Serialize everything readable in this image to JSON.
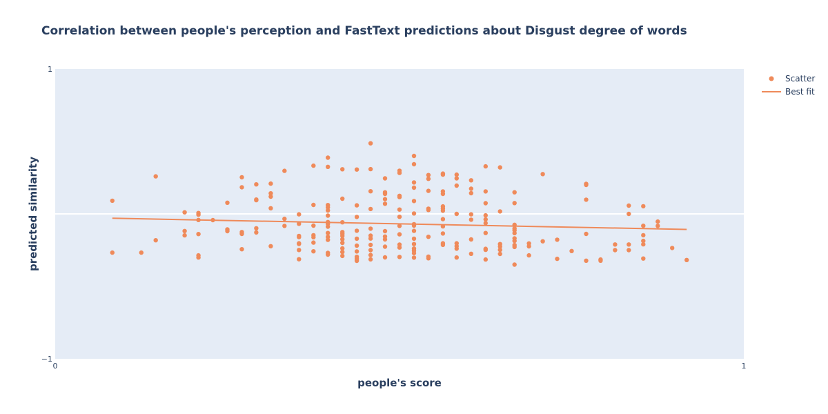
{
  "chart_data": {
    "type": "scatter",
    "title": "Correlation between people's perception and FastText predictions about Disgust degree of words",
    "xlabel": "people's score",
    "ylabel": "predicted similarity",
    "xlim": [
      0,
      1
    ],
    "ylim": [
      -1,
      1
    ],
    "x_ticks": [
      "0",
      "1"
    ],
    "y_ticks": [
      "−1",
      "1"
    ],
    "grid": true,
    "legend_position": "top-right",
    "colors": {
      "plot_bg": "#e5ecf6",
      "marker": "#ef8a5a",
      "line": "#ef8a5a",
      "zero_line": "#ffffff"
    },
    "series": [
      {
        "name": "Scatter",
        "mode": "markers",
        "points": [
          [
            0.083,
            0.091
          ],
          [
            0.083,
            -0.267
          ],
          [
            0.125,
            -0.267
          ],
          [
            0.146,
            0.259
          ],
          [
            0.146,
            -0.182
          ],
          [
            0.188,
            0.011
          ],
          [
            0.188,
            -0.118
          ],
          [
            0.188,
            -0.148
          ],
          [
            0.208,
            0.006
          ],
          [
            0.208,
            -0.005
          ],
          [
            0.208,
            -0.042
          ],
          [
            0.208,
            -0.139
          ],
          [
            0.208,
            -0.286
          ],
          [
            0.208,
            -0.301
          ],
          [
            0.229,
            -0.043
          ],
          [
            0.25,
            0.077
          ],
          [
            0.25,
            -0.107
          ],
          [
            0.25,
            -0.119
          ],
          [
            0.271,
            0.253
          ],
          [
            0.271,
            0.184
          ],
          [
            0.271,
            -0.125
          ],
          [
            0.271,
            -0.138
          ],
          [
            0.271,
            -0.244
          ],
          [
            0.292,
            0.204
          ],
          [
            0.292,
            0.099
          ],
          [
            0.292,
            0.095
          ],
          [
            0.292,
            -0.099
          ],
          [
            0.292,
            -0.128
          ],
          [
            0.313,
            0.209
          ],
          [
            0.313,
            0.142
          ],
          [
            0.313,
            0.119
          ],
          [
            0.313,
            0.039
          ],
          [
            0.313,
            -0.223
          ],
          [
            0.333,
            0.297
          ],
          [
            0.333,
            -0.034
          ],
          [
            0.333,
            -0.083
          ],
          [
            0.354,
            -0.003
          ],
          [
            0.354,
            -0.068
          ],
          [
            0.354,
            -0.152
          ],
          [
            0.354,
            -0.16
          ],
          [
            0.354,
            -0.203
          ],
          [
            0.354,
            -0.207
          ],
          [
            0.354,
            -0.249
          ],
          [
            0.354,
            -0.313
          ],
          [
            0.375,
            0.333
          ],
          [
            0.375,
            0.062
          ],
          [
            0.375,
            -0.081
          ],
          [
            0.375,
            -0.147
          ],
          [
            0.375,
            -0.161
          ],
          [
            0.375,
            -0.198
          ],
          [
            0.375,
            -0.258
          ],
          [
            0.396,
            0.388
          ],
          [
            0.396,
            0.325
          ],
          [
            0.396,
            0.061
          ],
          [
            0.396,
            0.045
          ],
          [
            0.396,
            0.024
          ],
          [
            0.396,
            -0.012
          ],
          [
            0.396,
            -0.056
          ],
          [
            0.396,
            -0.069
          ],
          [
            0.396,
            -0.088
          ],
          [
            0.396,
            -0.132
          ],
          [
            0.396,
            -0.159
          ],
          [
            0.396,
            -0.179
          ],
          [
            0.396,
            -0.269
          ],
          [
            0.396,
            -0.281
          ],
          [
            0.417,
            0.308
          ],
          [
            0.417,
            0.105
          ],
          [
            0.417,
            -0.058
          ],
          [
            0.417,
            -0.125
          ],
          [
            0.417,
            -0.138
          ],
          [
            0.417,
            -0.152
          ],
          [
            0.417,
            -0.175
          ],
          [
            0.417,
            -0.2
          ],
          [
            0.417,
            -0.238
          ],
          [
            0.417,
            -0.263
          ],
          [
            0.417,
            -0.29
          ],
          [
            0.438,
            0.306
          ],
          [
            0.438,
            0.059
          ],
          [
            0.438,
            -0.021
          ],
          [
            0.438,
            -0.116
          ],
          [
            0.438,
            -0.171
          ],
          [
            0.438,
            -0.219
          ],
          [
            0.438,
            -0.259
          ],
          [
            0.438,
            -0.296
          ],
          [
            0.438,
            -0.31
          ],
          [
            0.438,
            -0.324
          ],
          [
            0.458,
            0.487
          ],
          [
            0.458,
            0.309
          ],
          [
            0.458,
            0.156
          ],
          [
            0.458,
            0.034
          ],
          [
            0.458,
            -0.102
          ],
          [
            0.458,
            -0.15
          ],
          [
            0.458,
            -0.17
          ],
          [
            0.458,
            -0.214
          ],
          [
            0.458,
            -0.25
          ],
          [
            0.458,
            -0.284
          ],
          [
            0.458,
            -0.314
          ],
          [
            0.479,
            0.245
          ],
          [
            0.479,
            0.149
          ],
          [
            0.479,
            0.138
          ],
          [
            0.479,
            0.102
          ],
          [
            0.479,
            0.07
          ],
          [
            0.479,
            -0.119
          ],
          [
            0.479,
            -0.156
          ],
          [
            0.479,
            -0.176
          ],
          [
            0.479,
            -0.226
          ],
          [
            0.479,
            -0.3
          ],
          [
            0.5,
            0.298
          ],
          [
            0.5,
            0.283
          ],
          [
            0.5,
            0.125
          ],
          [
            0.5,
            0.116
          ],
          [
            0.5,
            0.03
          ],
          [
            0.5,
            -0.02
          ],
          [
            0.5,
            -0.083
          ],
          [
            0.5,
            -0.141
          ],
          [
            0.5,
            -0.212
          ],
          [
            0.5,
            -0.232
          ],
          [
            0.5,
            -0.297
          ],
          [
            0.521,
            0.4
          ],
          [
            0.521,
            0.343
          ],
          [
            0.521,
            0.217
          ],
          [
            0.521,
            0.181
          ],
          [
            0.521,
            0.089
          ],
          [
            0.521,
            0.003
          ],
          [
            0.521,
            -0.071
          ],
          [
            0.521,
            -0.081
          ],
          [
            0.521,
            -0.117
          ],
          [
            0.521,
            -0.171
          ],
          [
            0.521,
            -0.208
          ],
          [
            0.521,
            -0.239
          ],
          [
            0.521,
            -0.254
          ],
          [
            0.521,
            -0.271
          ],
          [
            0.521,
            -0.302
          ],
          [
            0.542,
            0.268
          ],
          [
            0.542,
            0.242
          ],
          [
            0.542,
            0.159
          ],
          [
            0.542,
            0.036
          ],
          [
            0.542,
            0.027
          ],
          [
            0.542,
            -0.158
          ],
          [
            0.542,
            -0.295
          ],
          [
            0.542,
            -0.306
          ],
          [
            0.563,
            0.278
          ],
          [
            0.563,
            0.271
          ],
          [
            0.563,
            0.155
          ],
          [
            0.563,
            0.138
          ],
          [
            0.563,
            0.052
          ],
          [
            0.563,
            0.037
          ],
          [
            0.563,
            0.022
          ],
          [
            0.563,
            -0.036
          ],
          [
            0.563,
            -0.086
          ],
          [
            0.563,
            -0.135
          ],
          [
            0.563,
            -0.203
          ],
          [
            0.563,
            -0.214
          ],
          [
            0.583,
            0.271
          ],
          [
            0.583,
            0.245
          ],
          [
            0.583,
            0.195
          ],
          [
            0.583,
            0.0
          ],
          [
            0.583,
            -0.203
          ],
          [
            0.583,
            -0.223
          ],
          [
            0.583,
            -0.24
          ],
          [
            0.583,
            -0.301
          ],
          [
            0.604,
            0.232
          ],
          [
            0.604,
            0.174
          ],
          [
            0.604,
            0.143
          ],
          [
            0.604,
            -0.003
          ],
          [
            0.604,
            -0.04
          ],
          [
            0.604,
            -0.176
          ],
          [
            0.604,
            -0.275
          ],
          [
            0.625,
            0.328
          ],
          [
            0.625,
            0.155
          ],
          [
            0.625,
            0.074
          ],
          [
            0.625,
            -0.01
          ],
          [
            0.625,
            -0.038
          ],
          [
            0.625,
            -0.064
          ],
          [
            0.625,
            -0.132
          ],
          [
            0.625,
            -0.241
          ],
          [
            0.625,
            -0.248
          ],
          [
            0.625,
            -0.315
          ],
          [
            0.646,
            0.321
          ],
          [
            0.646,
            0.017
          ],
          [
            0.646,
            -0.208
          ],
          [
            0.646,
            -0.225
          ],
          [
            0.646,
            -0.248
          ],
          [
            0.646,
            -0.276
          ],
          [
            0.667,
            0.149
          ],
          [
            0.667,
            0.075
          ],
          [
            0.667,
            -0.075
          ],
          [
            0.667,
            -0.1
          ],
          [
            0.667,
            -0.113
          ],
          [
            0.667,
            -0.133
          ],
          [
            0.667,
            -0.169
          ],
          [
            0.667,
            -0.186
          ],
          [
            0.667,
            -0.215
          ],
          [
            0.667,
            -0.228
          ],
          [
            0.667,
            -0.35
          ],
          [
            0.688,
            -0.204
          ],
          [
            0.688,
            -0.224
          ],
          [
            0.688,
            -0.286
          ],
          [
            0.708,
            0.275
          ],
          [
            0.708,
            -0.189
          ],
          [
            0.729,
            -0.178
          ],
          [
            0.729,
            -0.31
          ],
          [
            0.75,
            -0.256
          ],
          [
            0.771,
            0.207
          ],
          [
            0.771,
            0.2
          ],
          [
            0.771,
            0.098
          ],
          [
            0.771,
            -0.138
          ],
          [
            0.771,
            -0.323
          ],
          [
            0.792,
            -0.315
          ],
          [
            0.792,
            -0.323
          ],
          [
            0.813,
            -0.211
          ],
          [
            0.813,
            -0.25
          ],
          [
            0.833,
            -0.211
          ],
          [
            0.833,
            -0.25
          ],
          [
            0.833,
            0.057
          ],
          [
            0.833,
            0.0
          ],
          [
            0.854,
            0.053
          ],
          [
            0.854,
            -0.082
          ],
          [
            0.854,
            -0.147
          ],
          [
            0.854,
            -0.186
          ],
          [
            0.854,
            -0.21
          ],
          [
            0.854,
            -0.308
          ],
          [
            0.875,
            -0.053
          ],
          [
            0.875,
            -0.083
          ],
          [
            0.896,
            -0.235
          ],
          [
            0.917,
            -0.318
          ]
        ]
      },
      {
        "name": "Best fit",
        "mode": "lines",
        "points": [
          [
            0.083,
            -0.03
          ],
          [
            0.917,
            -0.107
          ]
        ]
      }
    ]
  }
}
